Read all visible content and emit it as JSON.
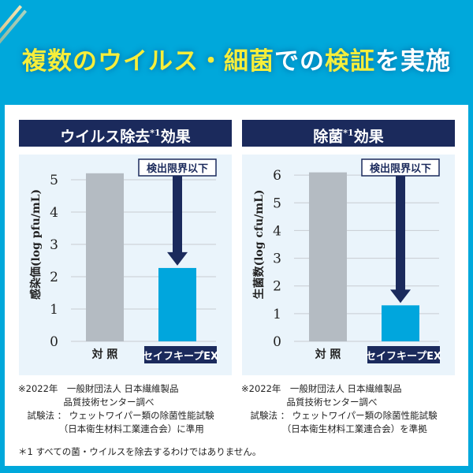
{
  "title": {
    "parts": [
      {
        "text": "複数のウイルス・細菌",
        "hl": true
      },
      {
        "text": "での",
        "hl": false
      },
      {
        "text": "検証",
        "hl": true
      },
      {
        "text": "を実施",
        "hl": false
      }
    ]
  },
  "colors": {
    "background": "#00a8db",
    "header": "#1b2a5c",
    "control_bar": "#b4bbc2",
    "product_bar": "#00a6dd",
    "plot_bg": "#eaf4fb"
  },
  "chart_data": [
    {
      "type": "bar",
      "header": "ウイルス除去",
      "header_sup": "*1",
      "header_suffix": "効果",
      "ylabel": "感染価(log pfu/mL)",
      "ylim": [
        0,
        6
      ],
      "yticks": [
        "0",
        "1",
        "2",
        "3",
        "4",
        "5",
        "6"
      ],
      "categories": [
        "対 照",
        "セイフキープEX"
      ],
      "values": [
        5.2,
        2.27
      ],
      "annotation": "検出限界以下",
      "grid": true
    },
    {
      "type": "bar",
      "header": "除菌",
      "header_sup": "*1",
      "header_suffix": "効果",
      "ylabel": "生菌数(log cfu/mL)",
      "ylim": [
        0,
        7
      ],
      "yticks": [
        "0",
        "1",
        "2",
        "3",
        "4",
        "5",
        "6",
        "7"
      ],
      "categories": [
        "対 照",
        "セイフキープEX"
      ],
      "values": [
        6.1,
        1.3
      ],
      "annotation": "検出限界以下",
      "grid": true
    }
  ],
  "notes": [
    "※2022年　一般財団法人 日本繊維製品\n　　　　　品質技術センター調べ\n　試験法 ： ウェットワイパー類の除菌性能試験\n　　　　　（日本衛生材料工業連合会）に準用",
    "※2022年　一般財団法人 日本繊維製品\n　　　　　品質技術センター調べ\n　試験法 ： ウェットワイパー類の除菌性能試験\n　　　　　（日本衛生材料工業連合会）を準拠"
  ],
  "footnote": "＊1 すべての菌・ウイルスを除去するわけではありません。"
}
